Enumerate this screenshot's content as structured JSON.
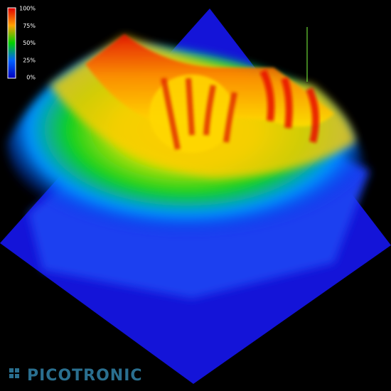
{
  "colorbar": {
    "ticks": [
      "100%",
      "75%",
      "50%",
      "25%",
      "0%"
    ]
  },
  "logo": {
    "text": "PICOTRONIC"
  }
}
